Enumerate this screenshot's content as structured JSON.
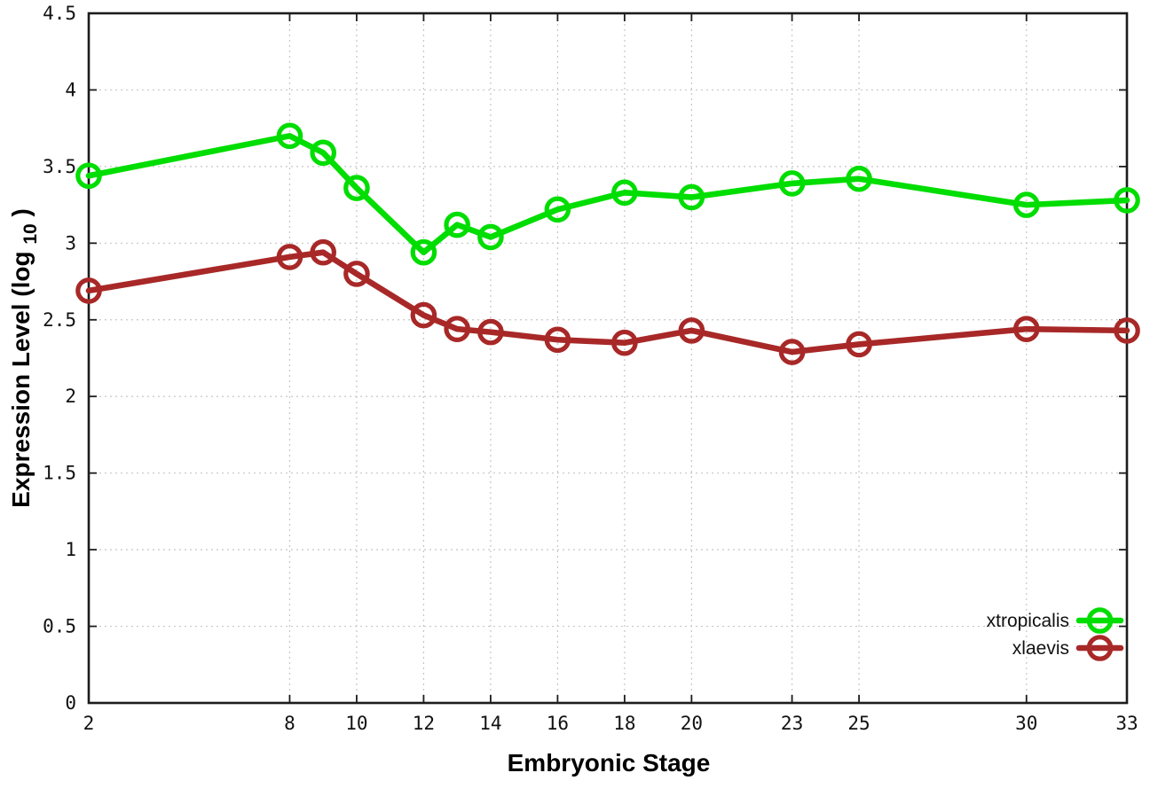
{
  "figure": {
    "background": "#ffffff",
    "frame_color": "#1c1c1c",
    "grid_color": "#c6c6c6"
  },
  "chart_data": {
    "type": "line",
    "title": "",
    "xlabel": "Embryonic Stage",
    "ylabel_parts": {
      "main": "Expression Level (log",
      "sub": "10",
      "close": ")"
    },
    "xlim": [
      2,
      33
    ],
    "ylim": [
      0,
      4.5
    ],
    "grid": true,
    "legend_position": "bottom-right",
    "x_ticks": [
      2,
      8,
      10,
      12,
      14,
      16,
      18,
      20,
      23,
      25,
      30,
      33
    ],
    "x_tick_labels": [
      "2",
      "8",
      "10",
      "12",
      "14",
      "16",
      "18",
      "20",
      "23",
      "25",
      "30",
      "33"
    ],
    "y_ticks": [
      0,
      0.5,
      1,
      1.5,
      2,
      2.5,
      3,
      3.5,
      4,
      4.5
    ],
    "y_tick_labels": [
      "0",
      "0.5",
      "1",
      "1.5",
      "2",
      "2.5",
      "3",
      "3.5",
      "4",
      "4.5"
    ],
    "x": [
      2,
      8,
      9,
      10,
      12,
      13,
      14,
      16,
      18,
      20,
      23,
      25,
      30,
      33
    ],
    "series": [
      {
        "name": "xtropicalis",
        "color": "#00dd00",
        "values": [
          3.44,
          3.7,
          3.59,
          3.36,
          2.94,
          3.12,
          3.04,
          3.22,
          3.33,
          3.3,
          3.39,
          3.42,
          3.25,
          3.28
        ]
      },
      {
        "name": "xlaevis",
        "color": "#a82828",
        "values": [
          2.69,
          2.91,
          2.94,
          2.8,
          2.53,
          2.44,
          2.42,
          2.37,
          2.35,
          2.43,
          2.29,
          2.34,
          2.44,
          2.43
        ]
      }
    ]
  }
}
